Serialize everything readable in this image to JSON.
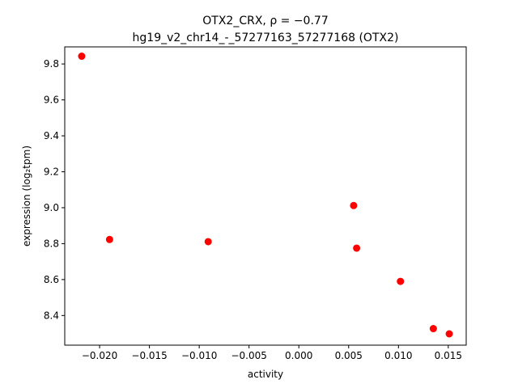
{
  "chart_data": {
    "type": "scatter",
    "title_line1": "OTX2_CRX, ρ = −0.77",
    "title_line2": "hg19_v2_chr14_-_57277163_57277168 (OTX2)",
    "xlabel": "activity",
    "ylabel": "expression (log₂tpm)",
    "xlim": [
      -0.0235,
      0.0168
    ],
    "ylim": [
      8.235,
      9.895
    ],
    "xticks": [
      -0.02,
      -0.015,
      -0.01,
      -0.005,
      0.0,
      0.005,
      0.01,
      0.015
    ],
    "xtick_labels": [
      "−0.020",
      "−0.015",
      "−0.010",
      "−0.005",
      "0.000",
      "0.005",
      "0.010",
      "0.015"
    ],
    "yticks": [
      8.4,
      8.6,
      8.8,
      9.0,
      9.2,
      9.4,
      9.6,
      9.8
    ],
    "ytick_labels": [
      "8.4",
      "8.6",
      "8.8",
      "9.0",
      "9.2",
      "9.4",
      "9.6",
      "9.8"
    ],
    "grid": false,
    "marker_color": "#ff0000",
    "x": [
      -0.0218,
      -0.019,
      -0.0091,
      0.0055,
      0.0058,
      0.0102,
      0.0135,
      0.0151
    ],
    "y": [
      9.843,
      8.823,
      8.811,
      9.012,
      8.775,
      8.59,
      8.327,
      8.298
    ]
  }
}
